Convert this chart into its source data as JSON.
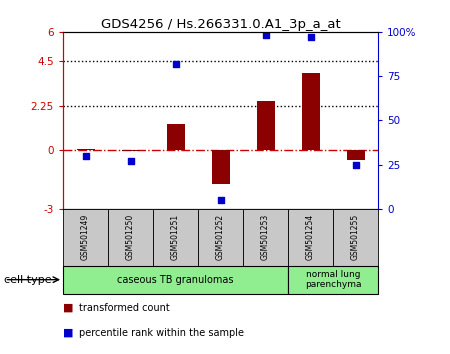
{
  "title": "GDS4256 / Hs.266331.0.A1_3p_a_at",
  "samples": [
    "GSM501249",
    "GSM501250",
    "GSM501251",
    "GSM501252",
    "GSM501253",
    "GSM501254",
    "GSM501255"
  ],
  "transformed_count": [
    0.02,
    -0.05,
    1.3,
    -1.75,
    2.5,
    3.9,
    -0.5
  ],
  "percentile_rank": [
    30,
    27,
    82,
    5,
    98,
    97,
    25
  ],
  "bar_color": "#8B0000",
  "dot_color": "#0000CD",
  "left_ylim": [
    -3,
    6
  ],
  "right_ylim": [
    0,
    100
  ],
  "left_yticks": [
    -3,
    0,
    2.25,
    4.5,
    6
  ],
  "right_yticks": [
    0,
    25,
    50,
    75,
    100
  ],
  "left_ytick_labels": [
    "-3",
    "0",
    "2.25",
    "4.5",
    "6"
  ],
  "right_ytick_labels": [
    "0",
    "25",
    "50",
    "75",
    "100%"
  ],
  "hlines": [
    4.5,
    2.25
  ],
  "group1_label": "caseous TB granulomas",
  "group2_label": "normal lung\nparenchyma",
  "group1_samples": 5,
  "group2_samples": 2,
  "cell_type_label": "cell type",
  "legend_red_label": "transformed count",
  "legend_blue_label": "percentile rank within the sample",
  "left_label_color": "#CC0000",
  "right_label_color": "#0000CD",
  "zero_line_color": "#CC0000",
  "sample_box_color": "#C8C8C8",
  "group_color": "#90EE90",
  "bg_color": "#FFFFFF"
}
